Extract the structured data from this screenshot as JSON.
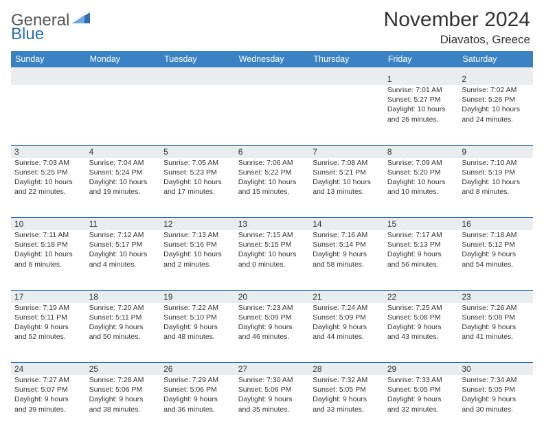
{
  "logo": {
    "word1": "General",
    "word2": "Blue",
    "word1_color": "#555555",
    "word2_color": "#2f6fb0"
  },
  "title": "November 2024",
  "location": "Diavatos, Greece",
  "header_bg": "#3b82c4",
  "header_text_color": "#ffffff",
  "stripe_bg": "#e9edf0",
  "cell_border_color": "#2f6fb0",
  "weekdays": [
    "Sunday",
    "Monday",
    "Tuesday",
    "Wednesday",
    "Thursday",
    "Friday",
    "Saturday"
  ],
  "rows": [
    [
      null,
      null,
      null,
      null,
      null,
      {
        "n": "1",
        "sr": "Sunrise: 7:01 AM",
        "ss": "Sunset: 5:27 PM",
        "d1": "Daylight: 10 hours",
        "d2": "and 26 minutes."
      },
      {
        "n": "2",
        "sr": "Sunrise: 7:02 AM",
        "ss": "Sunset: 5:26 PM",
        "d1": "Daylight: 10 hours",
        "d2": "and 24 minutes."
      }
    ],
    [
      {
        "n": "3",
        "sr": "Sunrise: 7:03 AM",
        "ss": "Sunset: 5:25 PM",
        "d1": "Daylight: 10 hours",
        "d2": "and 22 minutes."
      },
      {
        "n": "4",
        "sr": "Sunrise: 7:04 AM",
        "ss": "Sunset: 5:24 PM",
        "d1": "Daylight: 10 hours",
        "d2": "and 19 minutes."
      },
      {
        "n": "5",
        "sr": "Sunrise: 7:05 AM",
        "ss": "Sunset: 5:23 PM",
        "d1": "Daylight: 10 hours",
        "d2": "and 17 minutes."
      },
      {
        "n": "6",
        "sr": "Sunrise: 7:06 AM",
        "ss": "Sunset: 5:22 PM",
        "d1": "Daylight: 10 hours",
        "d2": "and 15 minutes."
      },
      {
        "n": "7",
        "sr": "Sunrise: 7:08 AM",
        "ss": "Sunset: 5:21 PM",
        "d1": "Daylight: 10 hours",
        "d2": "and 13 minutes."
      },
      {
        "n": "8",
        "sr": "Sunrise: 7:09 AM",
        "ss": "Sunset: 5:20 PM",
        "d1": "Daylight: 10 hours",
        "d2": "and 10 minutes."
      },
      {
        "n": "9",
        "sr": "Sunrise: 7:10 AM",
        "ss": "Sunset: 5:19 PM",
        "d1": "Daylight: 10 hours",
        "d2": "and 8 minutes."
      }
    ],
    [
      {
        "n": "10",
        "sr": "Sunrise: 7:11 AM",
        "ss": "Sunset: 5:18 PM",
        "d1": "Daylight: 10 hours",
        "d2": "and 6 minutes."
      },
      {
        "n": "11",
        "sr": "Sunrise: 7:12 AM",
        "ss": "Sunset: 5:17 PM",
        "d1": "Daylight: 10 hours",
        "d2": "and 4 minutes."
      },
      {
        "n": "12",
        "sr": "Sunrise: 7:13 AM",
        "ss": "Sunset: 5:16 PM",
        "d1": "Daylight: 10 hours",
        "d2": "and 2 minutes."
      },
      {
        "n": "13",
        "sr": "Sunrise: 7:15 AM",
        "ss": "Sunset: 5:15 PM",
        "d1": "Daylight: 10 hours",
        "d2": "and 0 minutes."
      },
      {
        "n": "14",
        "sr": "Sunrise: 7:16 AM",
        "ss": "Sunset: 5:14 PM",
        "d1": "Daylight: 9 hours",
        "d2": "and 58 minutes."
      },
      {
        "n": "15",
        "sr": "Sunrise: 7:17 AM",
        "ss": "Sunset: 5:13 PM",
        "d1": "Daylight: 9 hours",
        "d2": "and 56 minutes."
      },
      {
        "n": "16",
        "sr": "Sunrise: 7:18 AM",
        "ss": "Sunset: 5:12 PM",
        "d1": "Daylight: 9 hours",
        "d2": "and 54 minutes."
      }
    ],
    [
      {
        "n": "17",
        "sr": "Sunrise: 7:19 AM",
        "ss": "Sunset: 5:11 PM",
        "d1": "Daylight: 9 hours",
        "d2": "and 52 minutes."
      },
      {
        "n": "18",
        "sr": "Sunrise: 7:20 AM",
        "ss": "Sunset: 5:11 PM",
        "d1": "Daylight: 9 hours",
        "d2": "and 50 minutes."
      },
      {
        "n": "19",
        "sr": "Sunrise: 7:22 AM",
        "ss": "Sunset: 5:10 PM",
        "d1": "Daylight: 9 hours",
        "d2": "and 48 minutes."
      },
      {
        "n": "20",
        "sr": "Sunrise: 7:23 AM",
        "ss": "Sunset: 5:09 PM",
        "d1": "Daylight: 9 hours",
        "d2": "and 46 minutes."
      },
      {
        "n": "21",
        "sr": "Sunrise: 7:24 AM",
        "ss": "Sunset: 5:09 PM",
        "d1": "Daylight: 9 hours",
        "d2": "and 44 minutes."
      },
      {
        "n": "22",
        "sr": "Sunrise: 7:25 AM",
        "ss": "Sunset: 5:08 PM",
        "d1": "Daylight: 9 hours",
        "d2": "and 43 minutes."
      },
      {
        "n": "23",
        "sr": "Sunrise: 7:26 AM",
        "ss": "Sunset: 5:08 PM",
        "d1": "Daylight: 9 hours",
        "d2": "and 41 minutes."
      }
    ],
    [
      {
        "n": "24",
        "sr": "Sunrise: 7:27 AM",
        "ss": "Sunset: 5:07 PM",
        "d1": "Daylight: 9 hours",
        "d2": "and 39 minutes."
      },
      {
        "n": "25",
        "sr": "Sunrise: 7:28 AM",
        "ss": "Sunset: 5:06 PM",
        "d1": "Daylight: 9 hours",
        "d2": "and 38 minutes."
      },
      {
        "n": "26",
        "sr": "Sunrise: 7:29 AM",
        "ss": "Sunset: 5:06 PM",
        "d1": "Daylight: 9 hours",
        "d2": "and 36 minutes."
      },
      {
        "n": "27",
        "sr": "Sunrise: 7:30 AM",
        "ss": "Sunset: 5:06 PM",
        "d1": "Daylight: 9 hours",
        "d2": "and 35 minutes."
      },
      {
        "n": "28",
        "sr": "Sunrise: 7:32 AM",
        "ss": "Sunset: 5:05 PM",
        "d1": "Daylight: 9 hours",
        "d2": "and 33 minutes."
      },
      {
        "n": "29",
        "sr": "Sunrise: 7:33 AM",
        "ss": "Sunset: 5:05 PM",
        "d1": "Daylight: 9 hours",
        "d2": "and 32 minutes."
      },
      {
        "n": "30",
        "sr": "Sunrise: 7:34 AM",
        "ss": "Sunset: 5:05 PM",
        "d1": "Daylight: 9 hours",
        "d2": "and 30 minutes."
      }
    ]
  ]
}
